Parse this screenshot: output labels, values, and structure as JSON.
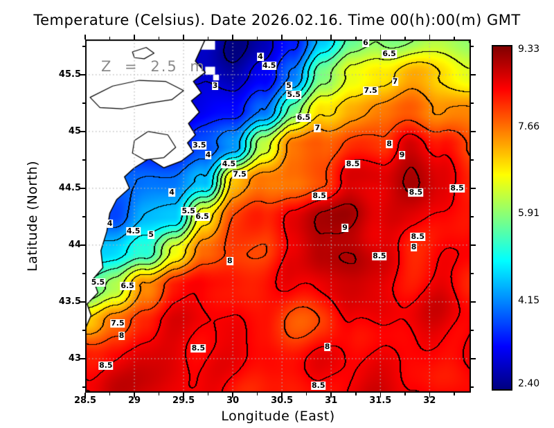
{
  "title": "Temperature (Celsius). Date 2026.02.16. Time 00(h):00(m) GMT",
  "annotation": "Z = 2.5 m",
  "chart_data": {
    "type": "heatmap",
    "title": "Temperature (Celsius). Date 2026.02.16. Time 00(h):00(m) GMT",
    "subtitle": "Z = 2.5 m",
    "xlabel": "Longitude (East)",
    "ylabel": "Latitude (North)",
    "xlim": [
      28.5,
      32.42
    ],
    "ylim": [
      42.7,
      45.81
    ],
    "xticks": [
      28.5,
      29,
      29.5,
      30,
      30.5,
      31,
      31.5,
      32
    ],
    "xtick_labels": [
      "28.5",
      "29",
      "29.5",
      "30",
      "30.5",
      "31",
      "31.5",
      "32"
    ],
    "yticks": [
      43,
      43.5,
      44,
      44.5,
      45,
      45.5
    ],
    "ytick_labels": [
      "43",
      "43.5",
      "44",
      "44.5",
      "45",
      "45.5"
    ],
    "grid": true,
    "grid_color": "#b4b4b4",
    "contour_interval": 0.5,
    "colorbar": {
      "colormap": "jet",
      "min": 2.4,
      "max": 9.33,
      "values": [
        9.33,
        7.66,
        5.91,
        4.15,
        2.4
      ],
      "labels": [
        "9.33",
        "7.66",
        "5.91",
        "4.15",
        "2.40"
      ]
    },
    "grid_lon": [
      28.5,
      28.8,
      29.1,
      29.4,
      29.7,
      30.0,
      30.3,
      30.6,
      30.9,
      31.2,
      31.5,
      31.8,
      32.1,
      32.4
    ],
    "grid_lat": [
      45.81,
      45.5,
      45.19,
      44.88,
      44.57,
      44.26,
      43.95,
      43.64,
      43.33,
      43.02,
      42.7
    ],
    "temperature": [
      [
        3.18,
        3.18,
        3.18,
        3.18,
        2.98,
        2.52,
        2.62,
        3.42,
        4.62,
        5.62,
        6.03,
        6.12,
        6.28,
        6.08
      ],
      [
        2.98,
        2.98,
        2.98,
        2.98,
        2.98,
        2.72,
        3.12,
        4.22,
        5.72,
        6.52,
        6.88,
        7.12,
        7.03,
        6.62
      ],
      [
        3.22,
        3.22,
        3.22,
        3.22,
        3.12,
        3.22,
        4.03,
        5.72,
        6.92,
        7.42,
        7.62,
        7.72,
        7.52,
        7.32
      ],
      [
        3.47,
        3.47,
        3.47,
        3.47,
        3.72,
        4.42,
        6.32,
        7.53,
        7.92,
        8.12,
        8.12,
        8.92,
        8.42,
        7.92
      ],
      [
        3.97,
        3.97,
        3.97,
        3.92,
        4.47,
        7.22,
        7.62,
        7.72,
        8.03,
        8.53,
        8.72,
        9.03,
        8.62,
        8.42
      ],
      [
        3.97,
        3.97,
        4.47,
        4.62,
        6.82,
        7.82,
        8.22,
        8.62,
        9.03,
        9.12,
        8.72,
        8.53,
        8.42,
        8.32
      ],
      [
        4.78,
        4.78,
        5.22,
        6.82,
        7.82,
        8.03,
        8.12,
        8.42,
        8.92,
        9.03,
        8.62,
        8.32,
        8.53,
        8.42
      ],
      [
        5.47,
        6.03,
        7.53,
        8.22,
        8.42,
        8.42,
        8.42,
        8.53,
        8.72,
        8.72,
        8.53,
        8.42,
        8.53,
        8.32
      ],
      [
        7.03,
        7.82,
        8.32,
        8.53,
        8.53,
        8.42,
        8.22,
        7.92,
        8.03,
        8.53,
        8.62,
        8.53,
        8.62,
        8.53
      ],
      [
        8.32,
        8.53,
        8.72,
        8.72,
        8.62,
        8.53,
        8.42,
        8.32,
        8.42,
        8.53,
        8.53,
        8.42,
        8.53,
        8.53
      ],
      [
        8.62,
        8.72,
        8.72,
        8.62,
        8.53,
        8.42,
        8.42,
        8.32,
        8.42,
        8.62,
        8.62,
        8.53,
        8.42,
        8.32
      ]
    ],
    "contour_labels": [
      [
        29.82,
        45.4,
        "3"
      ],
      [
        30.28,
        45.66,
        "4"
      ],
      [
        30.37,
        45.58,
        "4.5"
      ],
      [
        30.57,
        45.4,
        "5"
      ],
      [
        30.62,
        45.32,
        "5.5"
      ],
      [
        30.72,
        45.12,
        "6.5"
      ],
      [
        30.86,
        45.03,
        "7"
      ],
      [
        31.35,
        45.78,
        "6"
      ],
      [
        31.59,
        45.68,
        "6.5"
      ],
      [
        31.65,
        45.44,
        "7"
      ],
      [
        31.4,
        45.36,
        "7.5"
      ],
      [
        29.66,
        44.88,
        "3.5"
      ],
      [
        29.75,
        44.79,
        "4"
      ],
      [
        29.96,
        44.71,
        "4.5"
      ],
      [
        30.07,
        44.62,
        "7.5"
      ],
      [
        29.38,
        44.46,
        "4"
      ],
      [
        29.55,
        44.3,
        "5.5"
      ],
      [
        29.69,
        44.25,
        "6.5"
      ],
      [
        28.75,
        44.19,
        "4"
      ],
      [
        28.99,
        44.12,
        "4.5"
      ],
      [
        29.17,
        44.09,
        "5"
      ],
      [
        28.63,
        43.67,
        "5.5"
      ],
      [
        28.93,
        43.64,
        "6.5"
      ],
      [
        28.83,
        43.31,
        "7.5"
      ],
      [
        28.87,
        43.2,
        "8"
      ],
      [
        29.97,
        43.86,
        "8"
      ],
      [
        31.59,
        44.89,
        "8"
      ],
      [
        31.72,
        44.79,
        "9"
      ],
      [
        31.22,
        44.71,
        "8.5"
      ],
      [
        30.88,
        44.43,
        "8.5"
      ],
      [
        31.86,
        44.46,
        "8.5"
      ],
      [
        32.28,
        44.5,
        "8.5"
      ],
      [
        31.14,
        44.15,
        "9"
      ],
      [
        31.88,
        44.07,
        "8.5"
      ],
      [
        31.84,
        43.98,
        "8"
      ],
      [
        31.49,
        43.9,
        "8.5"
      ],
      [
        29.65,
        43.09,
        "8.5"
      ],
      [
        30.96,
        43.1,
        "8"
      ],
      [
        28.71,
        42.94,
        "8.5"
      ],
      [
        30.87,
        42.76,
        "8.5"
      ]
    ],
    "land_polygon": [
      [
        28.5,
        45.81
      ],
      [
        29.72,
        45.81
      ],
      [
        29.62,
        45.62
      ],
      [
        29.72,
        45.52
      ],
      [
        29.6,
        45.44
      ],
      [
        29.68,
        45.34
      ],
      [
        29.58,
        45.27
      ],
      [
        29.66,
        45.17
      ],
      [
        29.55,
        45.07
      ],
      [
        29.62,
        44.97
      ],
      [
        29.54,
        44.9
      ],
      [
        29.6,
        44.82
      ],
      [
        29.48,
        44.74
      ],
      [
        29.3,
        44.68
      ],
      [
        29.15,
        44.76
      ],
      [
        29.0,
        44.68
      ],
      [
        28.9,
        44.6
      ],
      [
        28.95,
        44.5
      ],
      [
        28.82,
        44.4
      ],
      [
        28.75,
        44.28
      ],
      [
        28.72,
        44.12
      ],
      [
        28.66,
        43.95
      ],
      [
        28.68,
        43.8
      ],
      [
        28.58,
        43.7
      ],
      [
        28.63,
        43.58
      ],
      [
        28.52,
        43.48
      ],
      [
        28.56,
        43.38
      ],
      [
        28.5,
        43.26
      ]
    ],
    "lakes": [
      [
        [
          28.55,
          45.3
        ],
        [
          28.78,
          45.4
        ],
        [
          29.05,
          45.45
        ],
        [
          29.32,
          45.44
        ],
        [
          29.5,
          45.36
        ],
        [
          29.38,
          45.28
        ],
        [
          29.15,
          45.25
        ],
        [
          28.88,
          45.2
        ],
        [
          28.65,
          45.21
        ]
      ],
      [
        [
          29.0,
          44.92
        ],
        [
          29.14,
          45.0
        ],
        [
          29.34,
          44.97
        ],
        [
          29.42,
          44.86
        ],
        [
          29.3,
          44.77
        ],
        [
          29.1,
          44.75
        ],
        [
          28.98,
          44.81
        ]
      ],
      [
        [
          28.98,
          45.7
        ],
        [
          29.12,
          45.74
        ],
        [
          29.2,
          45.69
        ],
        [
          29.1,
          45.64
        ],
        [
          29.0,
          45.65
        ]
      ]
    ],
    "missing_patches": [
      [
        29.66,
        45.81,
        0.16,
        0.09
      ],
      [
        29.72,
        45.57,
        0.1,
        0.07
      ],
      [
        29.8,
        45.5,
        0.06,
        0.05
      ]
    ]
  }
}
